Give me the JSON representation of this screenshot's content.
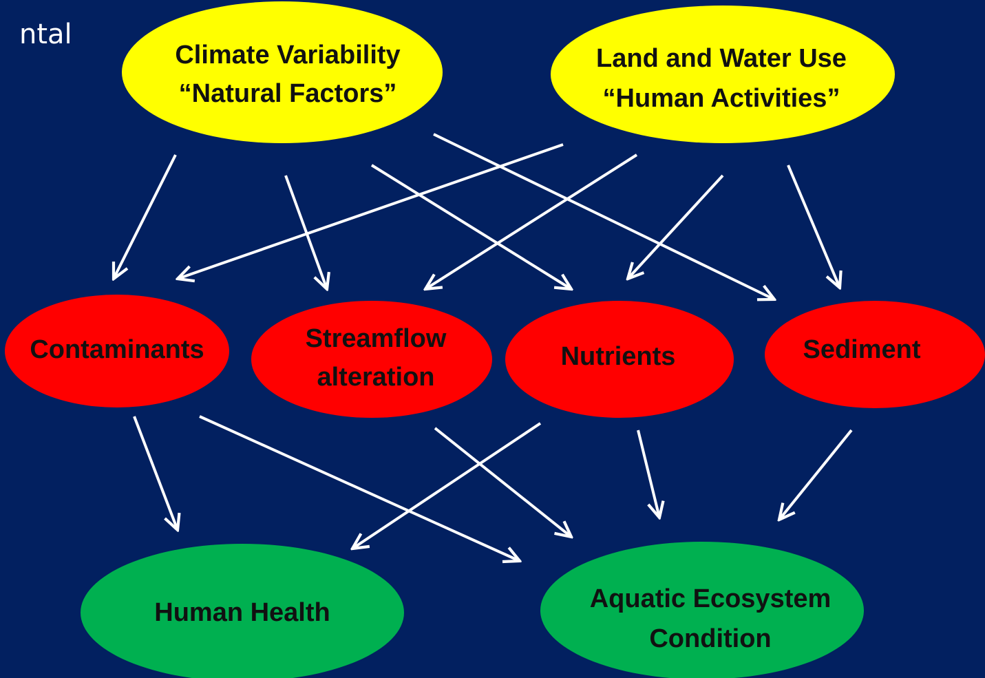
{
  "header": {
    "title_fragment": "ntal"
  },
  "nodes": [
    {
      "lines": [
        "Climate Variability",
        "“Natural Factors”"
      ]
    },
    {
      "lines": [
        "Land and Water Use",
        "“Human Activities”"
      ]
    },
    {
      "lines": [
        "Contaminants"
      ]
    },
    {
      "lines": [
        "Streamflow",
        "alteration"
      ]
    },
    {
      "lines": [
        "Nutrients"
      ]
    },
    {
      "lines": [
        "Sediment"
      ]
    },
    {
      "lines": [
        "Human Health"
      ]
    },
    {
      "lines": [
        "Aquatic Ecosystem",
        "Condition"
      ]
    }
  ]
}
